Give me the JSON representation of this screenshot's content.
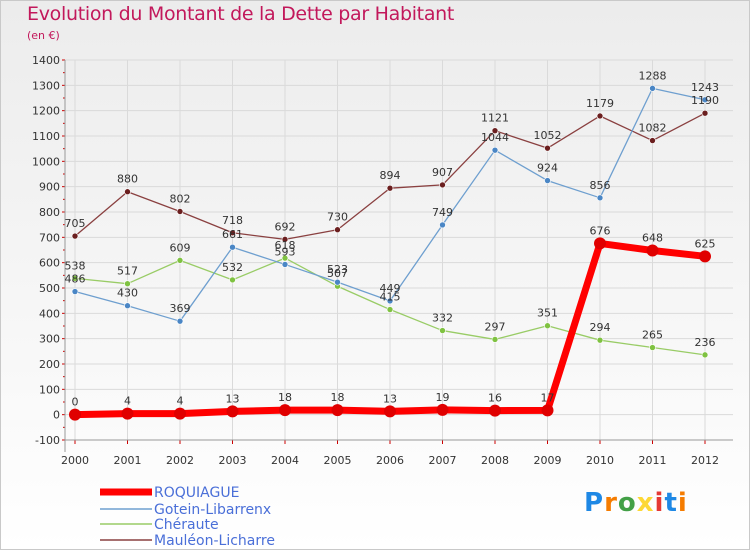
{
  "header": {
    "title": "Evolution du Montant de la Dette par Habitant",
    "unit": "(en €)"
  },
  "logo": {
    "text": "Proxiti",
    "letter_colors": [
      "#1e88e5",
      "#f57c00",
      "#43a047",
      "#fdd835",
      "#e53935",
      "#1e88e5",
      "#f57c00"
    ]
  },
  "chart_data": {
    "type": "line",
    "title": "Evolution du Montant de la Dette par Habitant",
    "ylabel": "(en €)",
    "xlabel": "",
    "ylim": [
      -100,
      1400
    ],
    "yticks": [
      -100,
      0,
      100,
      200,
      300,
      400,
      500,
      600,
      700,
      800,
      900,
      1000,
      1100,
      1200,
      1300,
      1400
    ],
    "x": [
      "2000",
      "2001",
      "2002",
      "2003",
      "2004",
      "2005",
      "2006",
      "2007",
      "2008",
      "2009",
      "2010",
      "2011",
      "2012"
    ],
    "grid": true,
    "legend_position": "bottom",
    "series": [
      {
        "name": "ROQUIAGUE",
        "color": "#ff0000",
        "marker_color": "#e00000",
        "label_color": "#333333",
        "width": 7,
        "values": [
          0,
          4,
          4,
          13,
          18,
          18,
          13,
          19,
          16,
          17,
          676,
          648,
          625
        ]
      },
      {
        "name": "Gotein-Libarrenx",
        "color": "#6e9fcf",
        "marker_color": "#4a86c5",
        "label_color": "#333333",
        "width": 1.3,
        "values": [
          486,
          430,
          369,
          661,
          593,
          523,
          449,
          749,
          1044,
          924,
          856,
          1288,
          1243
        ]
      },
      {
        "name": "Chéraute",
        "color": "#99cc66",
        "marker_color": "#7fc241",
        "label_color": "#333333",
        "width": 1.3,
        "values": [
          538,
          517,
          609,
          532,
          618,
          507,
          415,
          332,
          297,
          351,
          294,
          265,
          236
        ]
      },
      {
        "name": "Mauléon-Licharre",
        "color": "#8a4040",
        "marker_color": "#6b1f1f",
        "label_color": "#333333",
        "width": 1.3,
        "values": [
          705,
          880,
          802,
          718,
          692,
          730,
          894,
          907,
          1121,
          1052,
          1179,
          1082,
          1190
        ]
      }
    ],
    "data_labels": [
      {
        "series": 0,
        "text": [
          "0",
          "4",
          "4",
          "13",
          "18",
          "18",
          "13",
          "19",
          "16",
          "17",
          "676",
          "648",
          "625"
        ]
      },
      {
        "series": 1,
        "text": [
          "486",
          "430",
          "369",
          "661",
          "593",
          "523",
          "449",
          "749",
          "1044",
          "924",
          "856",
          "1288",
          "1243"
        ]
      },
      {
        "series": 2,
        "text": [
          "538",
          "517",
          "609",
          "532",
          "618",
          "507",
          "415",
          "332",
          "297",
          "351",
          "294",
          "265",
          "236"
        ]
      },
      {
        "series": 3,
        "text": [
          "705",
          "880",
          "802",
          "718",
          "692",
          "730",
          "894",
          "907",
          "1121",
          "1052",
          "1179",
          "1082",
          "1190"
        ]
      }
    ]
  }
}
